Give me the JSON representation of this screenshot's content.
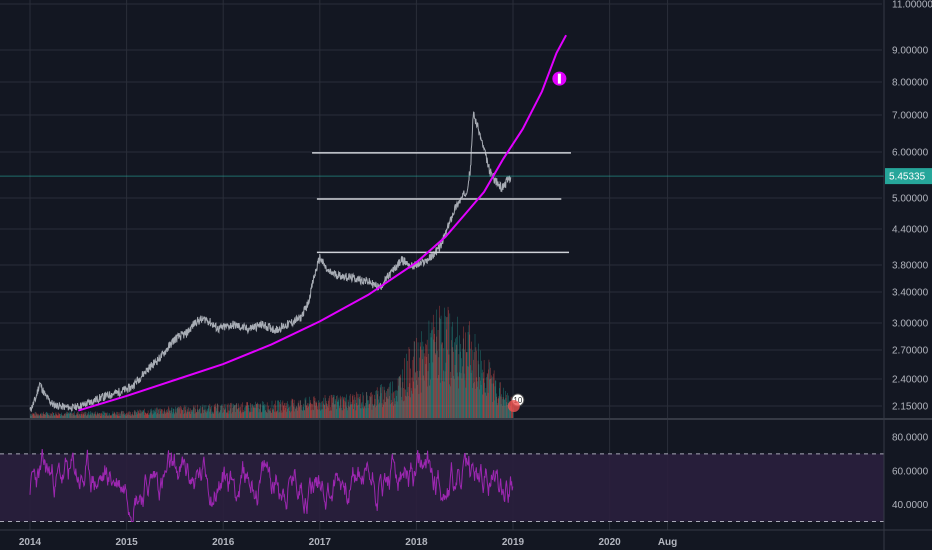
{
  "colors": {
    "background": "#131722",
    "grid": "#2a2e39",
    "axis_text": "#b2b5be",
    "price_line": "#b8bcc4",
    "price_tag": "#26a69a",
    "price_tag_line": "#26a69a",
    "curve": "#e100ff",
    "horizontal_lines": "#cfd2d8",
    "volume_up": "#26a69a",
    "volume_down": "#ef5350",
    "rsi_line": "#9c27b0",
    "rsi_band": "#2a1f3d",
    "rsi_bounds": "#a9a9b8",
    "separator": "#363a45"
  },
  "chart_data": [
    {
      "type": "line",
      "panel": "price",
      "scale": "log",
      "x_labels": [
        "2014",
        "2015",
        "2016",
        "2017",
        "2018",
        "2019",
        "2020",
        "Aug"
      ],
      "y_ticks": [
        "11.00000",
        "9.00000",
        "8.00000",
        "7.00000",
        "6.00000",
        "5.00000",
        "4.40000",
        "3.80000",
        "3.40000",
        "3.00000",
        "2.70000",
        "2.40000",
        "2.15000"
      ],
      "current_value": "5.45335",
      "series": [
        {
          "style": "candles",
          "points": [
            [
              2014.0,
              2.1
            ],
            [
              2014.06,
              2.22
            ],
            [
              2014.1,
              2.36
            ],
            [
              2014.16,
              2.24
            ],
            [
              2014.24,
              2.16
            ],
            [
              2014.34,
              2.14
            ],
            [
              2014.44,
              2.13
            ],
            [
              2014.56,
              2.16
            ],
            [
              2014.72,
              2.22
            ],
            [
              2014.9,
              2.27
            ],
            [
              2015.05,
              2.32
            ],
            [
              2015.2,
              2.48
            ],
            [
              2015.35,
              2.62
            ],
            [
              2015.5,
              2.82
            ],
            [
              2015.62,
              2.88
            ],
            [
              2015.72,
              3.02
            ],
            [
              2015.82,
              3.05
            ],
            [
              2015.95,
              2.93
            ],
            [
              2016.1,
              2.98
            ],
            [
              2016.25,
              2.93
            ],
            [
              2016.4,
              2.98
            ],
            [
              2016.55,
              2.92
            ],
            [
              2016.7,
              3.0
            ],
            [
              2016.8,
              3.06
            ],
            [
              2016.88,
              3.25
            ],
            [
              2016.93,
              3.55
            ],
            [
              2017.0,
              3.92
            ],
            [
              2017.08,
              3.7
            ],
            [
              2017.2,
              3.64
            ],
            [
              2017.35,
              3.6
            ],
            [
              2017.5,
              3.55
            ],
            [
              2017.62,
              3.46
            ],
            [
              2017.75,
              3.7
            ],
            [
              2017.85,
              3.88
            ],
            [
              2017.95,
              3.78
            ],
            [
              2018.05,
              3.82
            ],
            [
              2018.15,
              3.92
            ],
            [
              2018.25,
              4.1
            ],
            [
              2018.32,
              4.4
            ],
            [
              2018.4,
              4.8
            ],
            [
              2018.47,
              5.0
            ],
            [
              2018.52,
              5.15
            ],
            [
              2018.56,
              5.6
            ],
            [
              2018.59,
              7.05
            ],
            [
              2018.63,
              6.7
            ],
            [
              2018.7,
              6.05
            ],
            [
              2018.76,
              5.55
            ],
            [
              2018.82,
              5.35
            ],
            [
              2018.88,
              5.2
            ],
            [
              2018.93,
              5.32
            ],
            [
              2018.98,
              5.45
            ]
          ]
        },
        {
          "style": "curve",
          "points": [
            [
              2014.5,
              2.1
            ],
            [
              2015.0,
              2.24
            ],
            [
              2015.5,
              2.39
            ],
            [
              2016.0,
              2.55
            ],
            [
              2016.5,
              2.76
            ],
            [
              2017.0,
              3.02
            ],
            [
              2017.5,
              3.36
            ],
            [
              2018.0,
              3.84
            ],
            [
              2018.3,
              4.26
            ],
            [
              2018.5,
              4.67
            ],
            [
              2018.7,
              5.12
            ],
            [
              2018.9,
              5.84
            ],
            [
              2019.1,
              6.6
            ],
            [
              2019.3,
              7.7
            ],
            [
              2019.45,
              8.9
            ],
            [
              2019.55,
              9.6
            ]
          ]
        }
      ],
      "horizontal_levels": [
        {
          "value": 5.98,
          "x_start": 2016.92,
          "x_end": 2019.6
        },
        {
          "value": 4.98,
          "x_start": 2016.97,
          "x_end": 2019.5
        },
        {
          "value": 4.0,
          "x_start": 2016.97,
          "x_end": 2019.58
        }
      ],
      "target_marker": {
        "x": 2019.48,
        "y": 8.1
      },
      "event_badge": "10"
    },
    {
      "type": "bar",
      "panel": "volume",
      "series_note": "",
      "values_profile": [
        [
          2014.0,
          0.05
        ],
        [
          2015.0,
          0.06
        ],
        [
          2015.5,
          0.1
        ],
        [
          2016.0,
          0.12
        ],
        [
          2016.5,
          0.14
        ],
        [
          2017.0,
          0.18
        ],
        [
          2017.5,
          0.22
        ],
        [
          2017.8,
          0.35
        ],
        [
          2017.9,
          0.55
        ],
        [
          2018.1,
          0.75
        ],
        [
          2018.2,
          0.9
        ],
        [
          2018.3,
          0.95
        ],
        [
          2018.4,
          0.8
        ],
        [
          2018.5,
          0.85
        ],
        [
          2018.6,
          0.7
        ],
        [
          2018.7,
          0.55
        ],
        [
          2018.8,
          0.4
        ],
        [
          2018.9,
          0.25
        ],
        [
          2019.0,
          0.15
        ]
      ]
    },
    {
      "type": "line",
      "panel": "rsi",
      "y_ticks": [
        "80.0000",
        "60.0000",
        "40.0000"
      ],
      "upper_bound": 70,
      "lower_bound": 30,
      "ylim": [
        25,
        90
      ]
    }
  ]
}
